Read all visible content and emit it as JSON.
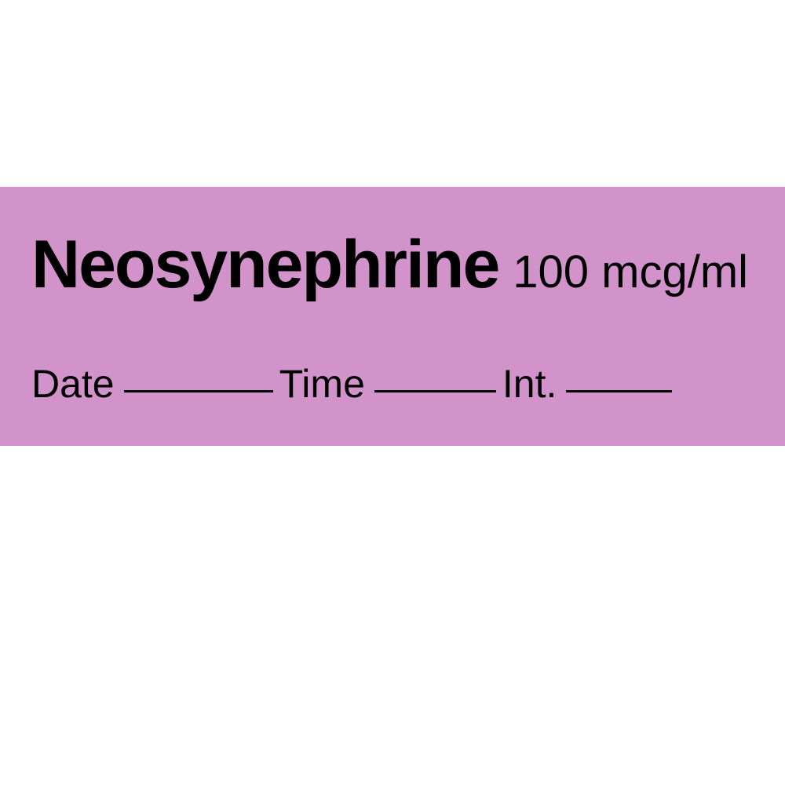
{
  "label": {
    "drug_name": "Neosynephrine",
    "concentration": "100 mcg/ml",
    "background_color": "#d193c9",
    "text_color": "#000000",
    "fields": {
      "date_label": "Date",
      "time_label": "Time",
      "int_label": "Int."
    },
    "drug_name_fontsize": 86,
    "drug_name_fontweight": 900,
    "concentration_fontsize": 58,
    "field_fontsize": 50,
    "line_widths": {
      "date": 190,
      "time": 155,
      "int": 135
    }
  }
}
